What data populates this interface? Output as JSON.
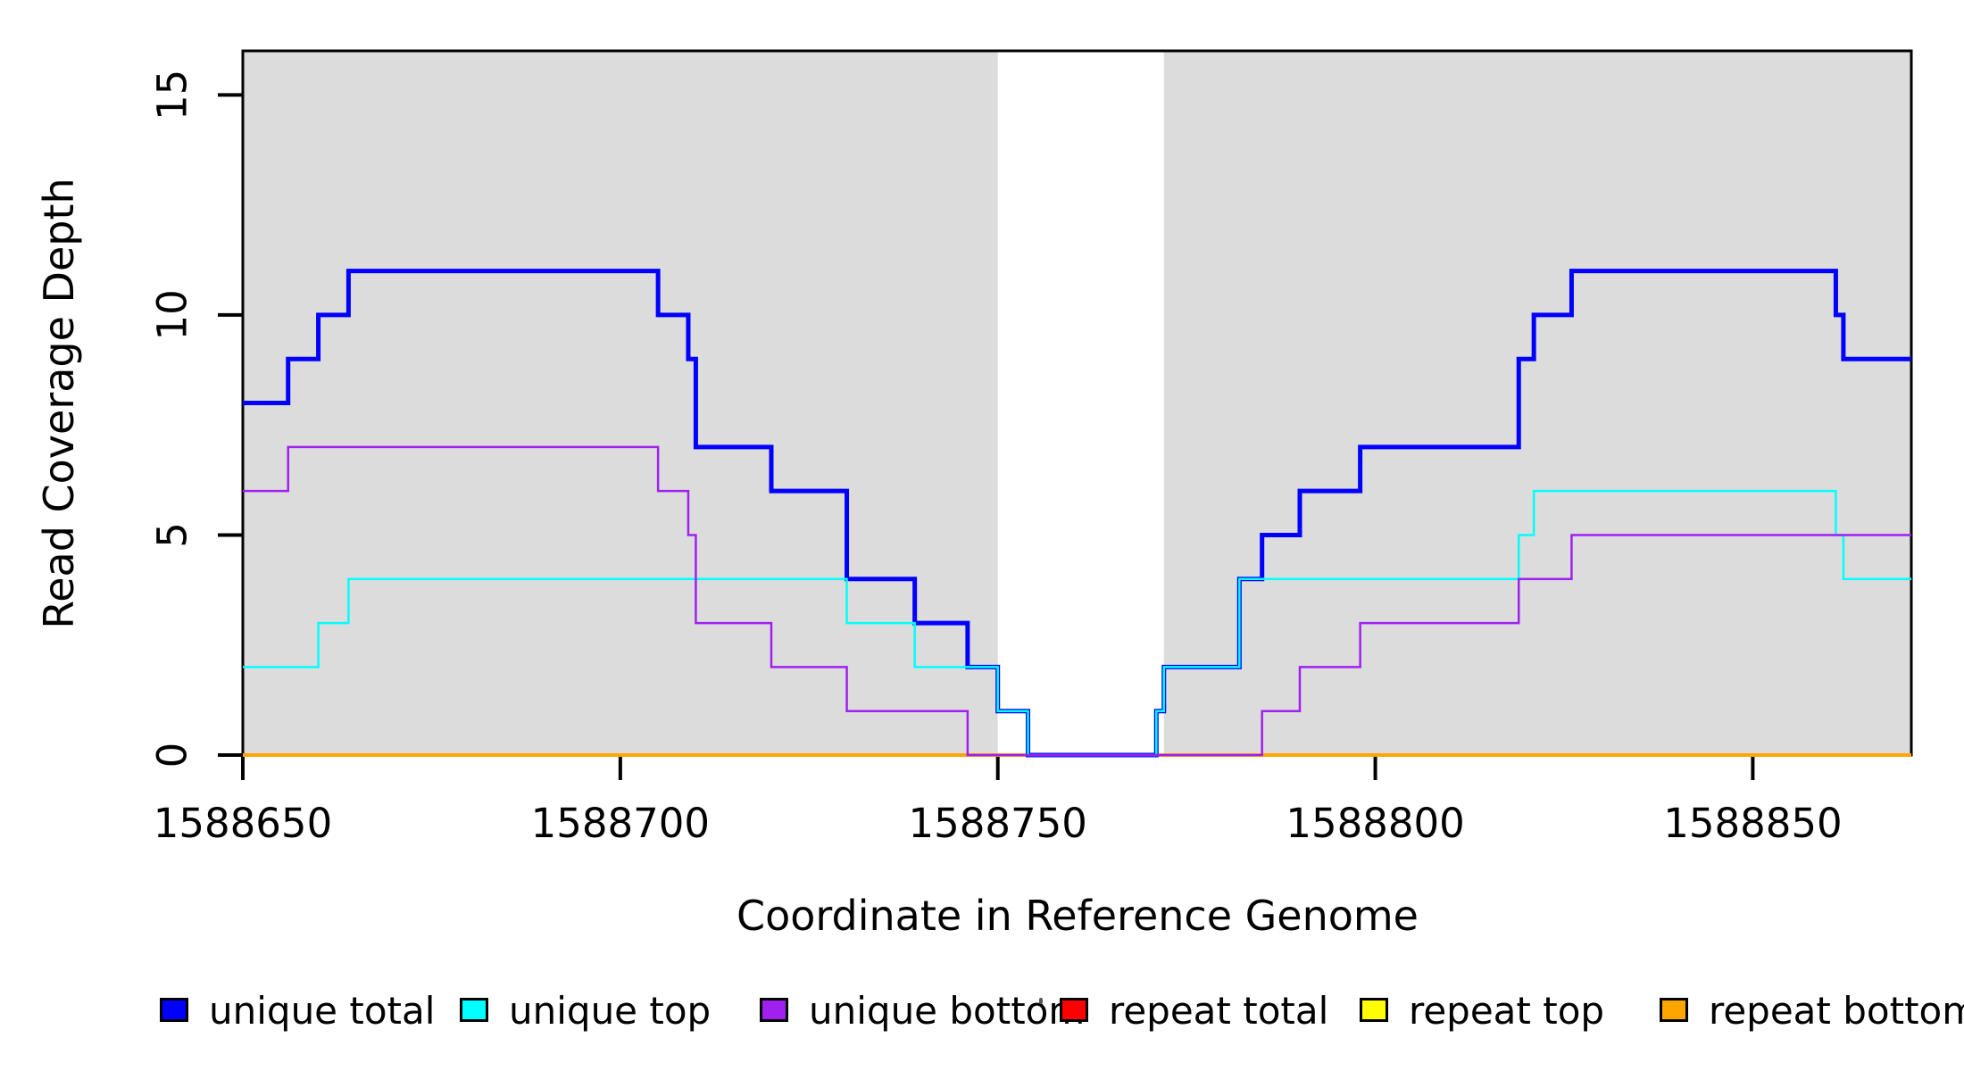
{
  "chart_data": {
    "type": "line",
    "subtype": "step-coverage",
    "title": "",
    "xlabel": "Coordinate in Reference Genome",
    "ylabel": "Read Coverage Depth",
    "xlim": [
      1588650,
      1588871
    ],
    "ylim": [
      0,
      16
    ],
    "xticks": [
      1588650,
      1588700,
      1588750,
      1588800,
      1588850
    ],
    "yticks": [
      0,
      5,
      10,
      15
    ],
    "grid": false,
    "background_color": "#ffffff",
    "shade_color": "#dcdcdc",
    "axis_color": "#000000",
    "shaded_regions": [
      {
        "from": 1588650,
        "to": 1588750
      },
      {
        "from": 1588772,
        "to": 1588871
      }
    ],
    "series": [
      {
        "name": "repeat total",
        "color": "#ff0000",
        "width": 3,
        "steps": [
          [
            1588650,
            0
          ],
          [
            1588871,
            0
          ]
        ]
      },
      {
        "name": "repeat top",
        "color": "#ffff00",
        "width": 3,
        "steps": [
          [
            1588650,
            0
          ],
          [
            1588871,
            0
          ]
        ]
      },
      {
        "name": "repeat bottom",
        "color": "#ffa500",
        "width": 4,
        "steps": [
          [
            1588650,
            0
          ],
          [
            1588871,
            0
          ]
        ]
      },
      {
        "name": "unique total",
        "color": "#0000ff",
        "width": 5,
        "steps": [
          [
            1588650,
            8
          ],
          [
            1588656,
            9
          ],
          [
            1588660,
            10
          ],
          [
            1588664,
            11
          ],
          [
            1588705,
            10
          ],
          [
            1588709,
            9
          ],
          [
            1588710,
            7
          ],
          [
            1588720,
            6
          ],
          [
            1588730,
            4
          ],
          [
            1588739,
            3
          ],
          [
            1588746,
            2
          ],
          [
            1588750,
            1
          ],
          [
            1588754,
            0
          ],
          [
            1588771,
            1
          ],
          [
            1588772,
            2
          ],
          [
            1588782,
            4
          ],
          [
            1588785,
            5
          ],
          [
            1588790,
            6
          ],
          [
            1588798,
            7
          ],
          [
            1588819,
            9
          ],
          [
            1588821,
            10
          ],
          [
            1588826,
            11
          ],
          [
            1588861,
            10
          ],
          [
            1588862,
            9
          ],
          [
            1588871,
            9
          ]
        ]
      },
      {
        "name": "unique top",
        "color": "#00ffff",
        "width": 2.5,
        "steps": [
          [
            1588650,
            2
          ],
          [
            1588660,
            3
          ],
          [
            1588664,
            4
          ],
          [
            1588730,
            3
          ],
          [
            1588739,
            2
          ],
          [
            1588750,
            1
          ],
          [
            1588754,
            0
          ],
          [
            1588771,
            1
          ],
          [
            1588772,
            2
          ],
          [
            1588782,
            4
          ],
          [
            1588819,
            5
          ],
          [
            1588821,
            6
          ],
          [
            1588861,
            5
          ],
          [
            1588862,
            4
          ],
          [
            1588871,
            4
          ]
        ]
      },
      {
        "name": "unique bottom",
        "color": "#a020f0",
        "width": 2.5,
        "steps": [
          [
            1588650,
            6
          ],
          [
            1588656,
            7
          ],
          [
            1588705,
            6
          ],
          [
            1588709,
            5
          ],
          [
            1588710,
            3
          ],
          [
            1588720,
            2
          ],
          [
            1588730,
            1
          ],
          [
            1588746,
            0
          ],
          [
            1588785,
            1
          ],
          [
            1588790,
            2
          ],
          [
            1588798,
            3
          ],
          [
            1588819,
            4
          ],
          [
            1588826,
            5
          ],
          [
            1588871,
            5
          ]
        ]
      }
    ],
    "legend": [
      {
        "label": "unique total",
        "color": "#0000ff"
      },
      {
        "label": "unique top",
        "color": "#00ffff"
      },
      {
        "label": "unique bottom",
        "color": "#a020f0"
      },
      {
        "label": "repeat total",
        "color": "#ff0000"
      },
      {
        "label": "repeat top",
        "color": "#ffff00"
      },
      {
        "label": "repeat bottom",
        "color": "#ffa500"
      }
    ],
    "legend_position": "bottom"
  }
}
